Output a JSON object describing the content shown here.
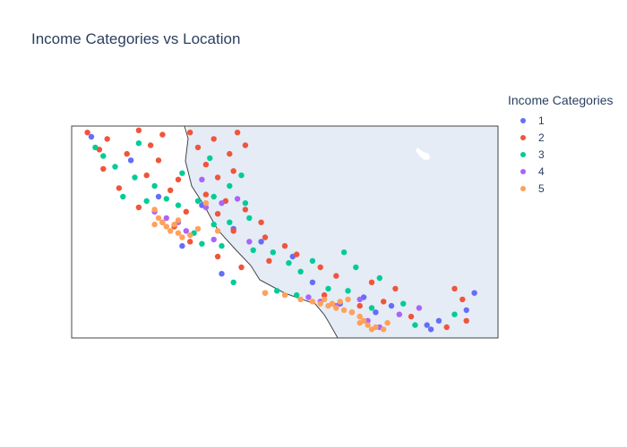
{
  "title": "Income Categories vs Location",
  "legend": {
    "title": "Income Categories",
    "items": [
      {
        "label": "1",
        "color": "#636efa"
      },
      {
        "label": "2",
        "color": "#EF553B"
      },
      {
        "label": "3",
        "color": "#00cc96"
      },
      {
        "label": "4",
        "color": "#ab63fa"
      },
      {
        "label": "5",
        "color": "#FFA15A"
      }
    ]
  },
  "chart_data": {
    "type": "scatter",
    "subtype": "scatter_geo",
    "title": "Income Categories vs Location",
    "legend_title": "Income Categories",
    "legend_placement": "right",
    "lon_range": [
      -124.6,
      -113.8
    ],
    "lat_range": [
      32.3,
      42.2
    ],
    "land_color": "#ffffff",
    "ocean_color": "#e5ecf6",
    "series": [
      {
        "name": "1",
        "color": "#636efa",
        "points": [
          [
            -124.1,
            41.7
          ],
          [
            -123.1,
            40.6
          ],
          [
            -122.4,
            38.9
          ],
          [
            -121.3,
            38.5
          ],
          [
            -120.5,
            37.4
          ],
          [
            -119.8,
            36.8
          ],
          [
            -119.0,
            36.1
          ],
          [
            -118.5,
            34.9
          ],
          [
            -117.2,
            34.2
          ],
          [
            -116.9,
            33.5
          ],
          [
            -115.6,
            32.9
          ],
          [
            -115.5,
            32.7
          ],
          [
            -114.6,
            33.6
          ],
          [
            -114.4,
            34.4
          ],
          [
            -116.5,
            33.8
          ],
          [
            -117.8,
            33.9
          ],
          [
            -121.8,
            36.6
          ],
          [
            -122.3,
            37.7
          ],
          [
            -120.8,
            35.3
          ],
          [
            -115.3,
            33.1
          ]
        ]
      },
      {
        "name": "2",
        "color": "#EF553B",
        "points": [
          [
            -124.2,
            41.9
          ],
          [
            -123.7,
            41.6
          ],
          [
            -122.9,
            42.0
          ],
          [
            -122.3,
            41.8
          ],
          [
            -121.6,
            41.9
          ],
          [
            -121.0,
            41.6
          ],
          [
            -120.4,
            41.9
          ],
          [
            -120.2,
            41.3
          ],
          [
            -121.4,
            41.2
          ],
          [
            -122.6,
            41.3
          ],
          [
            -123.9,
            41.1
          ],
          [
            -123.2,
            40.9
          ],
          [
            -122.4,
            40.6
          ],
          [
            -121.2,
            40.4
          ],
          [
            -120.6,
            40.9
          ],
          [
            -123.8,
            40.2
          ],
          [
            -122.7,
            39.9
          ],
          [
            -121.9,
            39.7
          ],
          [
            -120.9,
            39.8
          ],
          [
            -120.5,
            40.1
          ],
          [
            -123.4,
            39.3
          ],
          [
            -122.1,
            39.2
          ],
          [
            -121.2,
            39.0
          ],
          [
            -120.7,
            38.7
          ],
          [
            -122.9,
            38.4
          ],
          [
            -121.7,
            38.2
          ],
          [
            -120.9,
            38.1
          ],
          [
            -120.2,
            38.3
          ],
          [
            -119.8,
            37.7
          ],
          [
            -120.5,
            37.3
          ],
          [
            -119.7,
            37.0
          ],
          [
            -119.2,
            36.6
          ],
          [
            -118.9,
            36.2
          ],
          [
            -119.6,
            35.9
          ],
          [
            -118.3,
            35.6
          ],
          [
            -117.9,
            35.2
          ],
          [
            -117.0,
            34.9
          ],
          [
            -116.4,
            34.6
          ],
          [
            -114.9,
            34.6
          ],
          [
            -114.7,
            34.1
          ],
          [
            -114.6,
            33.1
          ],
          [
            -115.1,
            32.8
          ],
          [
            -116.0,
            33.3
          ],
          [
            -117.3,
            33.8
          ],
          [
            -118.2,
            34.3
          ],
          [
            -120.3,
            35.6
          ],
          [
            -120.9,
            36.1
          ],
          [
            -121.6,
            36.8
          ],
          [
            -122.0,
            37.5
          ],
          [
            -116.7,
            34.0
          ]
        ]
      },
      {
        "name": "3",
        "color": "#00cc96",
        "points": [
          [
            -124.0,
            41.2
          ],
          [
            -123.8,
            40.8
          ],
          [
            -123.5,
            40.3
          ],
          [
            -123.0,
            39.8
          ],
          [
            -122.5,
            39.4
          ],
          [
            -122.2,
            38.8
          ],
          [
            -121.9,
            38.5
          ],
          [
            -121.4,
            38.7
          ],
          [
            -121.0,
            38.9
          ],
          [
            -120.6,
            39.4
          ],
          [
            -120.3,
            39.9
          ],
          [
            -120.2,
            38.6
          ],
          [
            -120.1,
            37.9
          ],
          [
            -120.6,
            37.7
          ],
          [
            -121.0,
            37.6
          ],
          [
            -121.5,
            37.2
          ],
          [
            -121.3,
            36.7
          ],
          [
            -120.8,
            36.6
          ],
          [
            -120.0,
            36.4
          ],
          [
            -119.5,
            36.3
          ],
          [
            -119.1,
            35.8
          ],
          [
            -118.8,
            35.4
          ],
          [
            -118.5,
            35.9
          ],
          [
            -117.7,
            36.3
          ],
          [
            -117.4,
            35.6
          ],
          [
            -116.8,
            35.1
          ],
          [
            -117.6,
            34.5
          ],
          [
            -118.1,
            34.6
          ],
          [
            -118.9,
            34.3
          ],
          [
            -119.4,
            34.5
          ],
          [
            -117.0,
            33.7
          ],
          [
            -116.2,
            33.9
          ],
          [
            -115.9,
            32.9
          ],
          [
            -114.9,
            33.4
          ],
          [
            -120.5,
            34.9
          ],
          [
            -122.7,
            38.7
          ],
          [
            -123.3,
            38.9
          ],
          [
            -121.8,
            40.0
          ],
          [
            -122.9,
            41.4
          ],
          [
            -121.1,
            40.7
          ]
        ]
      },
      {
        "name": "4",
        "color": "#ab63fa",
        "points": [
          [
            -122.5,
            38.2
          ],
          [
            -122.2,
            37.9
          ],
          [
            -121.9,
            37.7
          ],
          [
            -121.7,
            37.3
          ],
          [
            -121.2,
            38.4
          ],
          [
            -120.8,
            38.6
          ],
          [
            -120.4,
            38.8
          ],
          [
            -121.3,
            39.7
          ],
          [
            -118.6,
            34.2
          ],
          [
            -118.3,
            34.0
          ],
          [
            -117.9,
            33.8
          ],
          [
            -117.5,
            33.5
          ],
          [
            -117.1,
            33.1
          ],
          [
            -116.8,
            32.8
          ],
          [
            -116.3,
            33.4
          ],
          [
            -115.8,
            33.7
          ],
          [
            -121.0,
            36.9
          ],
          [
            -120.1,
            36.8
          ],
          [
            -117.3,
            34.1
          ],
          [
            -119.7,
            34.4
          ]
        ]
      },
      {
        "name": "5",
        "color": "#FFA15A",
        "points": [
          [
            -122.4,
            37.9
          ],
          [
            -122.3,
            37.7
          ],
          [
            -122.2,
            37.5
          ],
          [
            -122.1,
            37.3
          ],
          [
            -121.9,
            37.2
          ],
          [
            -121.8,
            37.0
          ],
          [
            -122.0,
            37.6
          ],
          [
            -121.9,
            37.8
          ],
          [
            -122.5,
            37.6
          ],
          [
            -121.4,
            37.4
          ],
          [
            -121.6,
            37.1
          ],
          [
            -119.7,
            34.4
          ],
          [
            -119.2,
            34.3
          ],
          [
            -118.8,
            34.1
          ],
          [
            -118.5,
            34.0
          ],
          [
            -118.3,
            33.9
          ],
          [
            -118.1,
            33.8
          ],
          [
            -117.9,
            33.7
          ],
          [
            -117.7,
            33.6
          ],
          [
            -117.5,
            33.5
          ],
          [
            -117.3,
            33.3
          ],
          [
            -117.2,
            33.1
          ],
          [
            -117.1,
            32.9
          ],
          [
            -117.0,
            32.7
          ],
          [
            -116.9,
            32.8
          ],
          [
            -117.3,
            33.0
          ],
          [
            -118.2,
            34.1
          ],
          [
            -117.8,
            34.0
          ],
          [
            -117.6,
            34.1
          ],
          [
            -118.0,
            33.9
          ],
          [
            -116.6,
            33.0
          ],
          [
            -116.7,
            32.7
          ],
          [
            -121.2,
            38.6
          ],
          [
            -122.5,
            38.3
          ],
          [
            -120.9,
            37.3
          ]
        ]
      }
    ]
  }
}
